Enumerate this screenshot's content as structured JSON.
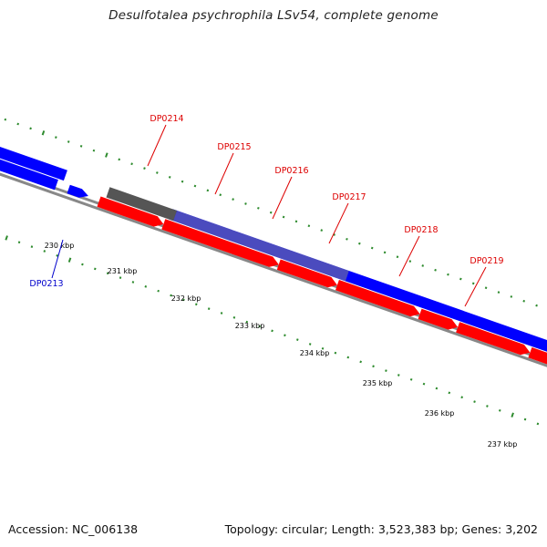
{
  "title": "Desulfotalea psychrophila LSv54, complete genome",
  "footer": {
    "accession": "Accession: NC_006138",
    "summary": "Topology: circular; Length: 3,523,383 bp; Genes: 3,202"
  },
  "colors": {
    "forward_strand": "#0000ff",
    "reverse_strand": "#ff0000",
    "overlap": "#555555",
    "backbone": "#888888",
    "tick": "#2e8b2e",
    "label_forward": "#0000cc",
    "label_reverse": "#dd0000"
  },
  "tick_labels": [
    "230 kbp",
    "231 kbp",
    "232 kbp",
    "233 kbp",
    "234 kbp",
    "235 kbp",
    "236 kbp",
    "237 kbp"
  ],
  "genes": [
    {
      "id": "DP0213",
      "strand": "forward"
    },
    {
      "id": "DP0214",
      "strand": "reverse"
    },
    {
      "id": "DP0215",
      "strand": "reverse"
    },
    {
      "id": "DP0216",
      "strand": "reverse"
    },
    {
      "id": "DP0217",
      "strand": "reverse"
    },
    {
      "id": "DP0218",
      "strand": "reverse"
    },
    {
      "id": "DP0219",
      "strand": "reverse"
    }
  ]
}
